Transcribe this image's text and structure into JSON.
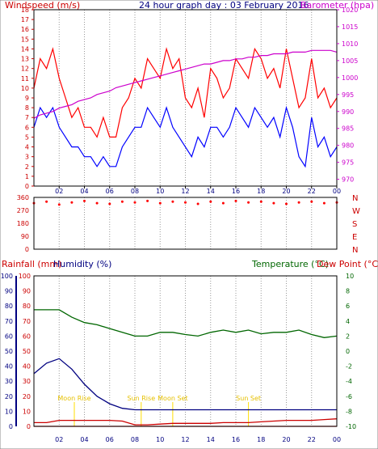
{
  "page": {
    "title": "24 hour graph day : 03 February 2016"
  },
  "colors": {
    "wind_gust": "#ff0000",
    "wind_avg": "#0000ff",
    "barometer": "#cc00cc",
    "direction": "#ff0000",
    "temperature": "#006600",
    "dew_point": "#cc0000",
    "humidity": "#000080",
    "rainfall": "#cc0000",
    "frame": "#000000",
    "grid": "#999999",
    "annotation": "#ffdd00"
  },
  "chart_data": [
    {
      "type": "line",
      "title": "24 hour graph day : 03 February 2016",
      "ylabel": "Windspeed (m/s)",
      "y2label": "Barometer (hpa)",
      "ylim": [
        0,
        18
      ],
      "y2lim": [
        968,
        1020
      ],
      "yticks": [
        0,
        1,
        2,
        3,
        4,
        5,
        6,
        7,
        8,
        9,
        10,
        11,
        12,
        13,
        14,
        15,
        16,
        17,
        18
      ],
      "y2ticks": [
        970,
        975,
        980,
        985,
        990,
        995,
        1000,
        1005,
        1010,
        1015,
        1020
      ],
      "xticks": [
        "02",
        "04",
        "06",
        "08",
        "10",
        "12",
        "14",
        "16",
        "18",
        "20",
        "22",
        "00"
      ],
      "x_hours": [
        0,
        0.5,
        1,
        1.5,
        2,
        2.5,
        3,
        3.5,
        4,
        4.5,
        5,
        5.5,
        6,
        6.5,
        7,
        7.5,
        8,
        8.5,
        9,
        9.5,
        10,
        10.5,
        11,
        11.5,
        12,
        12.5,
        13,
        13.5,
        14,
        14.5,
        15,
        15.5,
        16,
        16.5,
        17,
        17.5,
        18,
        18.5,
        19,
        19.5,
        20,
        20.5,
        21,
        21.5,
        22,
        22.5,
        23,
        23.5,
        24
      ],
      "series": [
        {
          "name": "Windspeed (m/s)",
          "role": "gust",
          "values": [
            10,
            13,
            12,
            14,
            11,
            9,
            7,
            8,
            6,
            6,
            5,
            7,
            5,
            5,
            8,
            9,
            11,
            10,
            13,
            12,
            11,
            14,
            12,
            13,
            9,
            8,
            10,
            7,
            12,
            11,
            9,
            10,
            13,
            12,
            11,
            14,
            13,
            11,
            12,
            10,
            14,
            11,
            8,
            9,
            13,
            9,
            10,
            8,
            9
          ]
        },
        {
          "name": "Windspeed (m/s)",
          "role": "average",
          "values": [
            6,
            8,
            7,
            8,
            6,
            5,
            4,
            4,
            3,
            3,
            2,
            3,
            2,
            2,
            4,
            5,
            6,
            6,
            8,
            7,
            6,
            8,
            6,
            5,
            4,
            3,
            5,
            4,
            6,
            6,
            5,
            6,
            8,
            7,
            6,
            8,
            7,
            6,
            7,
            5,
            8,
            6,
            3,
            2,
            7,
            4,
            5,
            3,
            4
          ]
        },
        {
          "name": "Barometer (hpa)",
          "role": "pressure",
          "values": [
            988,
            989,
            989.5,
            990,
            991,
            991.5,
            992,
            993,
            993.5,
            994,
            995,
            995.5,
            996,
            997,
            997.5,
            998,
            998.5,
            999,
            999.5,
            1000,
            1000.5,
            1001,
            1001.5,
            1002,
            1002.5,
            1003,
            1003.5,
            1004,
            1004,
            1004.5,
            1005,
            1005,
            1005.5,
            1005.5,
            1006,
            1006,
            1006.5,
            1006.5,
            1007,
            1007,
            1007,
            1007.5,
            1007.5,
            1007.5,
            1008,
            1008,
            1008,
            1008,
            1007.5
          ]
        }
      ]
    },
    {
      "type": "scatter",
      "ylim": [
        0,
        360
      ],
      "yticks": [
        0,
        90,
        180,
        270,
        360
      ],
      "compass_labels": [
        "N",
        "W",
        "S",
        "E",
        "N"
      ],
      "x_hours": [
        0,
        1,
        2,
        3,
        4,
        5,
        6,
        7,
        8,
        9,
        10,
        11,
        12,
        13,
        14,
        15,
        16,
        17,
        18,
        19,
        20,
        21,
        22,
        23,
        24
      ],
      "series": [
        {
          "name": "Wind direction",
          "values": [
            320,
            330,
            310,
            325,
            335,
            320,
            315,
            330,
            325,
            335,
            320,
            330,
            325,
            315,
            330,
            320,
            335,
            325,
            330,
            320,
            315,
            325,
            330,
            320,
            325
          ]
        }
      ]
    },
    {
      "type": "line",
      "ylabel": "Rainfall (mm)",
      "ylabel2": "Humidity (%)",
      "y2label": "Temperature (°C)",
      "y3label": "Dew Point (°C)",
      "ylim": [
        0,
        100
      ],
      "y2lim": [
        -10,
        10
      ],
      "yticks": [
        0,
        10,
        20,
        30,
        40,
        50,
        60,
        70,
        80,
        90,
        100
      ],
      "y2ticks": [
        -10,
        -8,
        -6,
        -4,
        -2,
        0,
        2,
        4,
        6,
        8,
        10
      ],
      "xticks": [
        "02",
        "04",
        "06",
        "08",
        "10",
        "12",
        "14",
        "16",
        "18",
        "20",
        "22",
        "00"
      ],
      "x_hours": [
        0,
        1,
        2,
        3,
        4,
        5,
        6,
        7,
        8,
        9,
        10,
        11,
        12,
        13,
        14,
        15,
        16,
        17,
        18,
        19,
        20,
        21,
        22,
        23,
        24
      ],
      "series": [
        {
          "name": "Temperature (°C)",
          "axis": "right",
          "values": [
            5.5,
            5.5,
            5.5,
            4.5,
            3.8,
            3.5,
            3.0,
            2.5,
            2.0,
            2.0,
            2.5,
            2.5,
            2.2,
            2.0,
            2.5,
            2.8,
            2.5,
            2.8,
            2.3,
            2.5,
            2.5,
            2.8,
            2.2,
            1.8,
            2.0
          ]
        },
        {
          "name": "Humidity (%)",
          "axis": "left",
          "values": [
            35,
            42,
            45,
            38,
            28,
            20,
            15,
            12,
            11,
            11,
            11,
            11,
            11,
            11,
            11,
            11,
            11,
            11,
            11,
            11,
            11,
            11,
            11,
            11,
            11
          ]
        },
        {
          "name": "Dew Point (°C)",
          "axis": "right",
          "values": [
            -9.5,
            -9.5,
            -9.2,
            -9.2,
            -9.2,
            -9.2,
            -9.2,
            -9.3,
            -9.8,
            -9.8,
            -9.7,
            -9.6,
            -9.6,
            -9.6,
            -9.6,
            -9.5,
            -9.5,
            -9.5,
            -9.4,
            -9.3,
            -9.2,
            -9.2,
            -9.2,
            -9.1,
            -9.0
          ]
        },
        {
          "name": "Rainfall (mm)",
          "axis": "left",
          "values": [
            0,
            0,
            0,
            0,
            0,
            0,
            0,
            0,
            0,
            0,
            0,
            0,
            0,
            0,
            0,
            0,
            0,
            0,
            0,
            0,
            0,
            0,
            0,
            0,
            0
          ]
        }
      ],
      "annotations": [
        {
          "label": "Moon Rise",
          "hour": 3.2
        },
        {
          "label": "Sun Rise",
          "hour": 8.5
        },
        {
          "label": "Moon Set",
          "hour": 11.0
        },
        {
          "label": "Sun Set",
          "hour": 17.0
        }
      ]
    }
  ]
}
